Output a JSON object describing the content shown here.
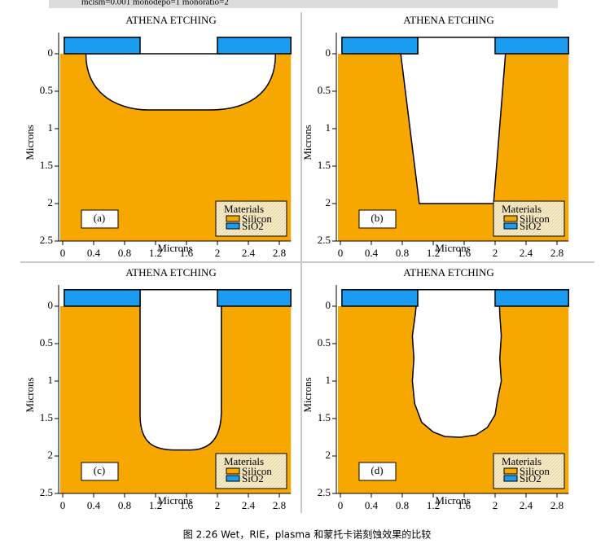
{
  "header": {
    "text": "mclsm=0.001 monodepo=1 monoratio=2"
  },
  "panels": [
    {
      "title": "ATHENA ETCHING",
      "label": "(a)",
      "x_label": "Microns",
      "y_label": "Microns",
      "x_ticks": [
        "0",
        "0.4",
        "0.8",
        "1.2",
        "1.6",
        "2",
        "2.4",
        "2.8"
      ],
      "y_ticks": [
        "0",
        "0.5",
        "1",
        "1.5",
        "2",
        "2.5"
      ],
      "legend": {
        "title": "Materials",
        "items": [
          "Silicon",
          "SiO2"
        ]
      }
    },
    {
      "title": "ATHENA ETCHING",
      "label": "(b)",
      "x_label": "Microns",
      "y_label": "Microns",
      "x_ticks": [
        "0",
        "0.4",
        "0.8",
        "1.2",
        "1.6",
        "2",
        "2.4",
        "2.8"
      ],
      "y_ticks": [
        "0",
        "0.5",
        "1",
        "1.5",
        "2",
        "2.5"
      ],
      "legend": {
        "title": "Materials",
        "items": [
          "Silicon",
          "SiO2"
        ]
      }
    },
    {
      "title": "ATHENA ETCHING",
      "label": "(c)",
      "x_label": "Microns",
      "y_label": "Microns",
      "x_ticks": [
        "0",
        "0.4",
        "0.8",
        "1.2",
        "1.6",
        "2",
        "2.4",
        "2.8"
      ],
      "y_ticks": [
        "0",
        "0.5",
        "1",
        "1.5",
        "2",
        "2.5"
      ],
      "legend": {
        "title": "Materials",
        "items": [
          "Silicon",
          "SiO2"
        ]
      }
    },
    {
      "title": "ATHENA ETCHING",
      "label": "(d)",
      "x_label": "Microns",
      "y_label": "Microns",
      "x_ticks": [
        "0",
        "0.4",
        "0.8",
        "1.2",
        "1.6",
        "2",
        "2.4",
        "2.8"
      ],
      "y_ticks": [
        "0",
        "0.5",
        "1",
        "1.5",
        "2",
        "2.5"
      ],
      "legend": {
        "title": "Materials",
        "items": [
          "Silicon",
          "SiO2"
        ]
      }
    }
  ],
  "caption": "图 2.26 Wet，RIE，plasma 和蒙托卡诺刻蚀效果的比较"
}
